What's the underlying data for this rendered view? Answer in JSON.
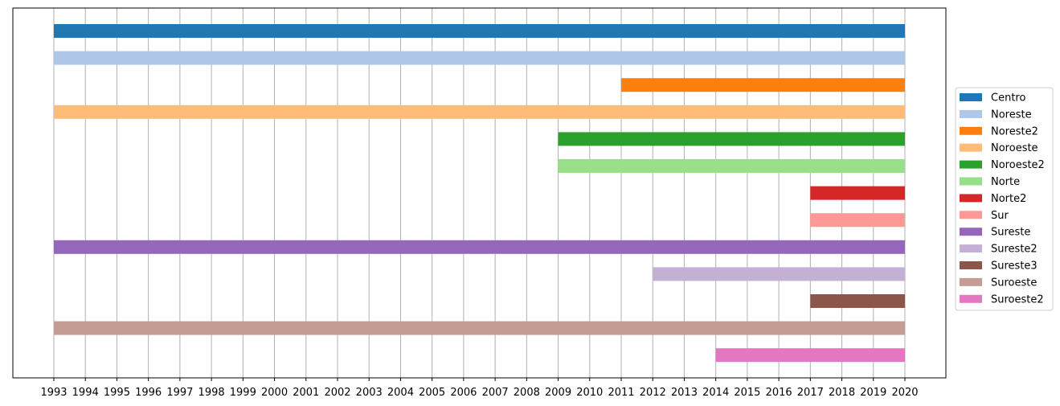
{
  "chart_data": {
    "type": "bar",
    "orientation": "horizontal",
    "title": "",
    "xlabel": "",
    "ylabel": "",
    "xlim": [
      1991.7,
      2021.3
    ],
    "x_ticks": [
      1993,
      1994,
      1995,
      1996,
      1997,
      1998,
      1999,
      2000,
      2001,
      2002,
      2003,
      2004,
      2005,
      2006,
      2007,
      2008,
      2009,
      2010,
      2011,
      2012,
      2013,
      2014,
      2015,
      2016,
      2017,
      2018,
      2019,
      2020
    ],
    "x_tick_labels": [
      "1993",
      "1994",
      "1995",
      "1996",
      "1997",
      "1998",
      "1999",
      "2000",
      "2001",
      "2002",
      "2003",
      "2004",
      "2005",
      "2006",
      "2007",
      "2008",
      "2009",
      "2010",
      "2011",
      "2012",
      "2013",
      "2014",
      "2015",
      "2016",
      "2017",
      "2018",
      "2019",
      "2020"
    ],
    "grid": "vertical",
    "y_axis_labels": "none",
    "legend_position": "right",
    "series": [
      {
        "name": "Centro",
        "start": 1993,
        "end": 2020,
        "color": "#1f77b4"
      },
      {
        "name": "Noreste",
        "start": 1993,
        "end": 2020,
        "color": "#aec7e8"
      },
      {
        "name": "Noreste2",
        "start": 2011,
        "end": 2020,
        "color": "#ff7f0e"
      },
      {
        "name": "Noroeste",
        "start": 1993,
        "end": 2020,
        "color": "#ffbb78"
      },
      {
        "name": "Noroeste2",
        "start": 2009,
        "end": 2020,
        "color": "#2ca02c"
      },
      {
        "name": "Norte",
        "start": 2009,
        "end": 2020,
        "color": "#98df8a"
      },
      {
        "name": "Norte2",
        "start": 2017,
        "end": 2020,
        "color": "#d62728"
      },
      {
        "name": "Sur",
        "start": 2017,
        "end": 2020,
        "color": "#ff9896"
      },
      {
        "name": "Sureste",
        "start": 1993,
        "end": 2020,
        "color": "#9467bd"
      },
      {
        "name": "Sureste2",
        "start": 2012,
        "end": 2020,
        "color": "#c5b0d5"
      },
      {
        "name": "Sureste3",
        "start": 2017,
        "end": 2020,
        "color": "#8c564b"
      },
      {
        "name": "Suroeste",
        "start": 1993,
        "end": 2020,
        "color": "#c49c94"
      },
      {
        "name": "Suroeste2",
        "start": 2014,
        "end": 2020,
        "color": "#e377c2"
      }
    ]
  }
}
